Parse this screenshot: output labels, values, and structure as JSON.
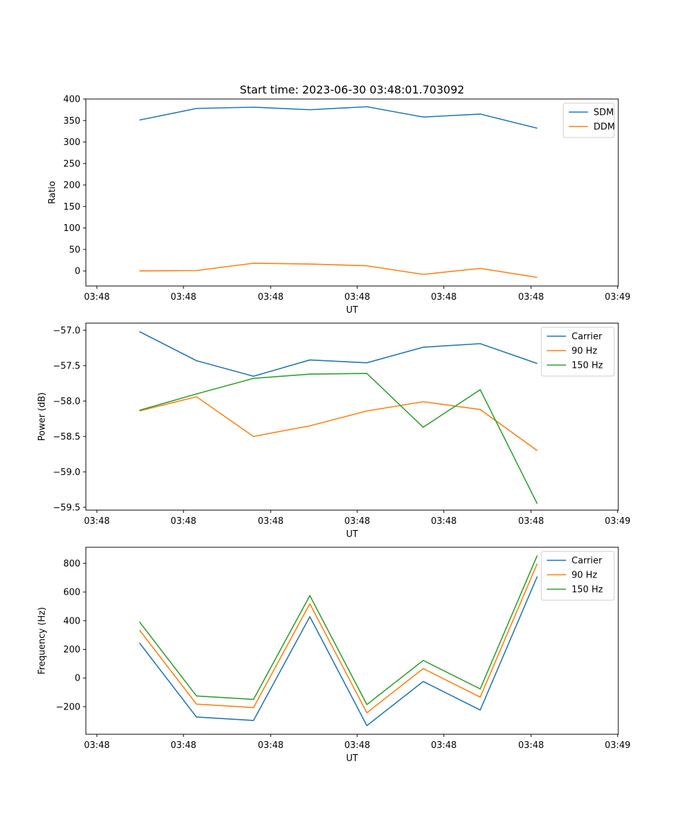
{
  "figure": {
    "title": "Start time: 2023-06-30 03:48:01.703092"
  },
  "chart_data": [
    {
      "type": "line",
      "title": "Start time: 2023-06-30 03:48:01.703092",
      "xlabel": "UT",
      "ylabel": "Ratio",
      "x_tick_labels": [
        "03:48",
        "03:48",
        "03:48",
        "03:48",
        "03:48",
        "03:48",
        "03:48"
      ],
      "x_last_tick_label": "03:49",
      "y_ticks": [
        0,
        50,
        100,
        150,
        200,
        250,
        300,
        350,
        400
      ],
      "ylim": [
        -35,
        400
      ],
      "grid": false,
      "legend": "top-right",
      "series": [
        {
          "name": "SDM",
          "color": "#1f77b4",
          "values": [
            351,
            378,
            381,
            375,
            382,
            358,
            365,
            332
          ]
        },
        {
          "name": "DDM",
          "color": "#ff7f0e",
          "values": [
            0,
            1,
            18,
            16,
            12,
            -8,
            6,
            -15
          ]
        }
      ]
    },
    {
      "type": "line",
      "xlabel": "UT",
      "ylabel": "Power (dB)",
      "x_tick_labels": [
        "03:48",
        "03:48",
        "03:48",
        "03:48",
        "03:48",
        "03:48",
        "03:48"
      ],
      "x_last_tick_label": "03:49",
      "y_ticks": [
        -57.0,
        -57.5,
        -58.0,
        -58.5,
        -59.0,
        -59.5
      ],
      "y_tick_labels": [
        "−57.0",
        "−57.5",
        "−58.0",
        "−58.5",
        "−59.0",
        "−59.5"
      ],
      "ylim": [
        -59.54,
        -56.9
      ],
      "grid": false,
      "legend": "top-right",
      "series": [
        {
          "name": "Carrier",
          "color": "#1f77b4",
          "values": [
            -57.02,
            -57.43,
            -57.65,
            -57.42,
            -57.46,
            -57.24,
            -57.19,
            -57.47
          ]
        },
        {
          "name": "90 Hz",
          "color": "#ff7f0e",
          "values": [
            -58.14,
            -57.94,
            -58.5,
            -58.35,
            -58.14,
            -58.01,
            -58.12,
            -58.7
          ]
        },
        {
          "name": "150 Hz",
          "color": "#2ca02c",
          "values": [
            -58.13,
            -57.9,
            -57.68,
            -57.62,
            -57.61,
            -58.37,
            -57.84,
            -59.45
          ]
        }
      ]
    },
    {
      "type": "line",
      "xlabel": "UT",
      "ylabel": "Frequency (Hz)",
      "x_tick_labels": [
        "03:48",
        "03:48",
        "03:48",
        "03:48",
        "03:48",
        "03:48",
        "03:48"
      ],
      "x_last_tick_label": "03:49",
      "y_ticks": [
        -200,
        0,
        200,
        400,
        600,
        800
      ],
      "y_tick_labels": [
        "−200",
        "0",
        "200",
        "400",
        "600",
        "800"
      ],
      "ylim": [
        -392,
        912
      ],
      "grid": false,
      "legend": "top-right",
      "series": [
        {
          "name": "Carrier",
          "color": "#1f77b4",
          "values": [
            245,
            -272,
            -296,
            428,
            -332,
            -24,
            -223,
            708
          ]
        },
        {
          "name": "90 Hz",
          "color": "#ff7f0e",
          "values": [
            335,
            -182,
            -206,
            518,
            -242,
            66,
            -133,
            798
          ]
        },
        {
          "name": "150 Hz",
          "color": "#2ca02c",
          "values": [
            392,
            -125,
            -149,
            575,
            -185,
            123,
            -76,
            855
          ]
        }
      ]
    }
  ]
}
